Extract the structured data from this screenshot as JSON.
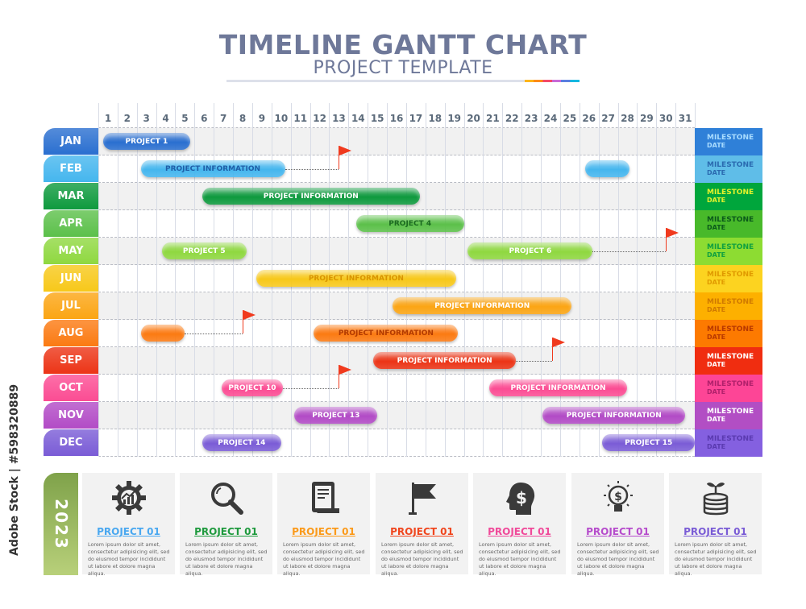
{
  "header": {
    "title": "TIMELINE GANTT CHART",
    "subtitle": "PROJECT TEMPLATE"
  },
  "watermark": "Adobe Stock | #598320889",
  "days": [
    1,
    2,
    3,
    4,
    5,
    6,
    7,
    8,
    9,
    10,
    11,
    12,
    13,
    14,
    15,
    16,
    17,
    18,
    19,
    20,
    21,
    22,
    23,
    24,
    25,
    26,
    27,
    28,
    29,
    30,
    31
  ],
  "milestone": {
    "label": "MILESTONE",
    "date": "DATE"
  },
  "months": [
    {
      "label": "JAN",
      "color": "#2a6fd0",
      "ms_bg": "#2f80d8",
      "ms_fg": "#a9dcff",
      "bar_fg": "#ffffff",
      "bars": [
        {
          "start": 1.25,
          "end": 5.77,
          "label": "PROJECT 1"
        }
      ]
    },
    {
      "label": "FEB",
      "color": "#45b6ee",
      "ms_bg": "#5fbde8",
      "ms_fg": "#2a6ab0",
      "bar_fg": "#1f5fa8",
      "flag": 13.5,
      "bars": [
        {
          "start": 3.2,
          "end": 10.7,
          "label": "PROJECT INFORMATION",
          "flag_link": true
        },
        {
          "start": 26.3,
          "end": 28.6,
          "label": ""
        }
      ]
    },
    {
      "label": "MAR",
      "color": "#0e9a3e",
      "ms_bg": "#00a63c",
      "ms_fg": "#e4f22b",
      "bar_fg": "#ffffff",
      "bars": [
        {
          "start": 6.4,
          "end": 17.7,
          "label": "PROJECT INFORMATION"
        }
      ]
    },
    {
      "label": "APR",
      "color": "#5cc04a",
      "ms_bg": "#48b92a",
      "ms_fg": "#0b5a1a",
      "bar_fg": "#1b6a20",
      "bars": [
        {
          "start": 14.4,
          "end": 20.0,
          "label": "PROJECT 4"
        }
      ]
    },
    {
      "label": "MAY",
      "color": "#8fd840",
      "ms_bg": "#8ddc32",
      "ms_fg": "#10a040",
      "bar_fg": "#ffffff",
      "flag": 30.5,
      "bars": [
        {
          "start": 4.3,
          "end": 8.7,
          "label": "PROJECT 5"
        },
        {
          "start": 20.2,
          "end": 26.7,
          "label": "PROJECT 6",
          "flag_link": true
        }
      ]
    },
    {
      "label": "JUN",
      "color": "#f7c81a",
      "ms_bg": "#fcd320",
      "ms_fg": "#e09a00",
      "bar_fg": "#d89400",
      "bars": [
        {
          "start": 9.2,
          "end": 19.6,
          "label": "PROJECT INFORMATION"
        }
      ]
    },
    {
      "label": "JUL",
      "color": "#fba514",
      "ms_bg": "#fdb000",
      "ms_fg": "#d07a00",
      "bar_fg": "#ffffff",
      "bars": [
        {
          "start": 16.3,
          "end": 25.6,
          "label": "PROJECT INFORMATION"
        }
      ]
    },
    {
      "label": "AUG",
      "color": "#fb7a12",
      "ms_bg": "#fd7a00",
      "ms_fg": "#b83800",
      "bar_fg": "#b23a00",
      "flag": 8.5,
      "bars": [
        {
          "start": 3.2,
          "end": 5.5,
          "label": "",
          "flag_link": true
        },
        {
          "start": 12.2,
          "end": 19.7,
          "label": "PROJECT INFORMATION"
        }
      ]
    },
    {
      "label": "SEP",
      "color": "#ec3416",
      "ms_bg": "#f02d10",
      "ms_fg": "#ffffff",
      "bar_fg": "#ffffff",
      "flag": 24.6,
      "bars": [
        {
          "start": 15.3,
          "end": 22.7,
          "label": "PROJECT INFORMATION",
          "flag_link": true
        }
      ]
    },
    {
      "label": "OCT",
      "color": "#fb4c93",
      "ms_bg": "#fd4596",
      "ms_fg": "#b0206b",
      "bar_fg": "#ffffff",
      "flag": 13.5,
      "bars": [
        {
          "start": 7.4,
          "end": 10.6,
          "label": "PROJECT 10",
          "flag_link": true
        },
        {
          "start": 21.3,
          "end": 28.5,
          "label": "PROJECT INFORMATION"
        }
      ]
    },
    {
      "label": "NOV",
      "color": "#b24bc6",
      "ms_bg": "#b24ec4",
      "ms_fg": "#ffffff",
      "bar_fg": "#ffffff",
      "bars": [
        {
          "start": 11.2,
          "end": 15.5,
          "label": "PROJECT 13"
        },
        {
          "start": 24.1,
          "end": 31.5,
          "label": "PROJECT INFORMATION"
        }
      ]
    },
    {
      "label": "DEC",
      "color": "#7a5cd6",
      "ms_bg": "#8460e0",
      "ms_fg": "#5a3ab0",
      "bar_fg": "#ffffff",
      "bars": [
        {
          "start": 6.4,
          "end": 10.5,
          "label": "PROJECT 14"
        },
        {
          "start": 27.2,
          "end": 32.0,
          "label": "PROJECT 15"
        }
      ]
    }
  ],
  "year": "2023",
  "cards": [
    {
      "icon": "gear-chart-icon",
      "title": "PROJECT 01",
      "color": "#4aa8f0",
      "text": "Lorem ipsum dolor sit amet, consectetur adipisicing elit, sed do eiusmod tempor incididunt ut labore et dolore magna aliqua."
    },
    {
      "icon": "magnifier-icon",
      "title": "PROJECT 01",
      "color": "#1f9a3e",
      "text": "Lorem ipsum dolor sit amet, consectetur adipisicing elit, sed do eiusmod tempor incididunt ut labore et dolore magna aliqua."
    },
    {
      "icon": "scroll-document-icon",
      "title": "PROJECT 01",
      "color": "#fb9a1a",
      "text": "Lorem ipsum dolor sit amet, consectetur adipisicing elit, sed do eiusmod tempor incididunt ut labore et dolore magna aliqua."
    },
    {
      "icon": "flag-icon",
      "title": "PROJECT 01",
      "color": "#f0461e",
      "text": "Lorem ipsum dolor sit amet, consectetur adipisicing elit, sed do eiusmod tempor incididunt ut labore et dolore magna aliqua."
    },
    {
      "icon": "head-dollar-icon",
      "title": "PROJECT 01",
      "color": "#f04a9a",
      "text": "Lorem ipsum dolor sit amet, consectetur adipisicing elit, sed do eiusmod tempor incididunt ut labore et dolore magna aliqua."
    },
    {
      "icon": "lightbulb-dollar-icon",
      "title": "PROJECT 01",
      "color": "#b64ccc",
      "text": "Lorem ipsum dolor sit amet, consectetur adipisicing elit, sed do eiusmod tempor incididunt ut labore et dolore magna aliqua."
    },
    {
      "icon": "coins-plant-icon",
      "title": "PROJECT 01",
      "color": "#7a5cd6",
      "text": "Lorem ipsum dolor sit amet, consectetur adipisicing elit, sed do eiusmod tempor incididunt ut labore et dolore magna aliqua."
    }
  ]
}
